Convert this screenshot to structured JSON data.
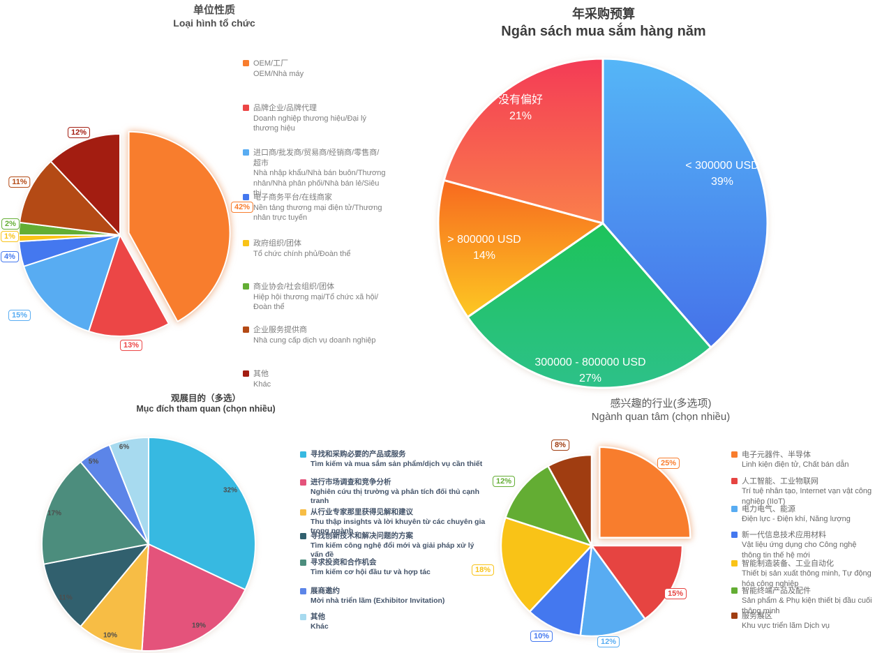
{
  "page": {
    "background": "#ffffff"
  },
  "chart_data": [
    {
      "id": "org-type",
      "type": "pie",
      "title_cn": "单位性质",
      "title_vi": "Loại hình tổ chức",
      "label_style": "boxed-percent-outside",
      "legend_position": "right",
      "slices": [
        {
          "label_cn": "OEM/工厂",
          "label_vi": "OEM/Nhà máy",
          "value": 42,
          "color": "#F87D2D",
          "exploded": true
        },
        {
          "label_cn": "品牌企业/品牌代理",
          "label_vi": "Doanh nghiệp thương hiệu/Đại lý thương hiệu",
          "value": 13,
          "color": "#EC4646"
        },
        {
          "label_cn": "进口商/批发商/贸易商/经销商/零售商/超市",
          "label_vi": "Nhà nhập khẩu/Nhà bán buôn/Thương nhân/Nhà phân phối/Nhà bán lẻ/Siêu thị",
          "value": 15,
          "color": "#58ACF2"
        },
        {
          "label_cn": "电子商务平台/在线商家",
          "label_vi": "Nền tảng thương mại điện tử/Thương nhân trực tuyến",
          "value": 4,
          "color": "#4478EF"
        },
        {
          "label_cn": "政府组织/团体",
          "label_vi": "Tổ chức chính phủ/Đoàn thể",
          "value": 1,
          "color": "#F9C317"
        },
        {
          "label_cn": "商业协会/社会组织/团体",
          "label_vi": "Hiệp hội thương mại/Tổ chức xã hội/Đoàn thể",
          "value": 2,
          "color": "#63AE34"
        },
        {
          "label_cn": "企业服务提供商",
          "label_vi": "Nhà cung cấp dịch vụ doanh nghiệp",
          "value": 11,
          "color": "#B44A15"
        },
        {
          "label_cn": "其他",
          "label_vi": "Khác",
          "value": 12,
          "color": "#A31D11"
        }
      ]
    },
    {
      "id": "budget",
      "type": "pie",
      "title_cn": "年采购预算",
      "title_vi": "Ngân sách mua sắm hàng năm",
      "label_style": "inside-white",
      "legend_position": "none",
      "slices": [
        {
          "label": "< 300000 USD",
          "value": 39,
          "gradient": [
            "#55B6F7",
            "#4571E9"
          ]
        },
        {
          "label": "300000 - 800000 USD",
          "value": 27,
          "gradient": [
            "#1DC35A",
            "#2DC189"
          ]
        },
        {
          "label": "> 800000 USD",
          "value": 14,
          "gradient": [
            "#F7691F",
            "#FDC822"
          ]
        },
        {
          "label": "没有偏好",
          "value": 21,
          "gradient": [
            "#F43B56",
            "#FA7F4B"
          ]
        }
      ]
    },
    {
      "id": "visit-purpose",
      "type": "pie",
      "title_cn": "观展目的（多选）",
      "title_vi": "Mục đích tham quan (chọn nhiều)",
      "label_style": "inside-dark-percent",
      "legend_position": "right",
      "slices": [
        {
          "label_cn": "寻找和采购必要的产品或服务",
          "label_vi": "Tìm kiếm và mua sắm sản phẩm/dịch vụ cần thiết",
          "value": 32,
          "color": "#37B9E1"
        },
        {
          "label_cn": "进行市场调查和竞争分析",
          "label_vi": "Nghiên cứu thị trường và phân tích đối thủ cạnh tranh",
          "value": 19,
          "color": "#E4537B"
        },
        {
          "label_cn": "从行业专家那里获得见解和建议",
          "label_vi": "Thu thập insights và lời khuyên từ các chuyên gia trong ngành",
          "value": 10,
          "color": "#F7BD45"
        },
        {
          "label_cn": "寻找创新技术和解决问题的方案",
          "label_vi": "Tìm kiếm công nghệ đổi mới và giải pháp xử lý vấn đề",
          "value": 11,
          "color": "#31606E"
        },
        {
          "label_cn": "寻求投资和合作机会",
          "label_vi": "Tìm kiếm cơ hội đầu tư và hợp tác",
          "value": 17,
          "color": "#4C8D7D"
        },
        {
          "label_cn": "展商邀约",
          "label_vi": "Mời nhà triển lãm (Exhibitor Invitation)",
          "value": 5,
          "color": "#5C85E8"
        },
        {
          "label_cn": "其他",
          "label_vi": "Khác",
          "value": 6,
          "color": "#A7DAEF"
        }
      ]
    },
    {
      "id": "industry",
      "type": "pie",
      "title_cn": "感兴趣的行业(多选项)",
      "title_vi": "Ngành quan tâm (chọn nhiều)",
      "label_style": "boxed-percent-outside",
      "legend_position": "right",
      "slices": [
        {
          "label_cn": "电子元器件、半导体",
          "label_vi": "Linh kiện điện tử, Chất bán dẫn",
          "value": 25,
          "color": "#F87D2D",
          "exploded": true
        },
        {
          "label_cn": "人工智能、工业物联网",
          "label_vi": "Trí tuệ nhân tạo, Internet vạn vật công nghiệp (IIoT)",
          "value": 15,
          "color": "#E64441"
        },
        {
          "label_cn": "电力电气、能源",
          "label_vi": "Điện lực - Điện khí, Năng lượng",
          "value": 12,
          "color": "#58ACF2"
        },
        {
          "label_cn": "新一代信息技术应用材料",
          "label_vi": "Vật liệu ứng dụng cho Công nghệ thông tin thế hệ mới",
          "value": 10,
          "color": "#4478EF"
        },
        {
          "label_cn": "智能制造装备、工业自动化",
          "label_vi": "Thiết bị sản xuất thông minh, Tự động hóa công nghiệp",
          "value": 18,
          "color": "#F9C317"
        },
        {
          "label_cn": "智能终端产品及配件",
          "label_vi": "Sản phẩm & Phụ kiện thiết bị đầu cuối thông minh",
          "value": 12,
          "color": "#63AD33"
        },
        {
          "label_cn": "服务展区",
          "label_vi": "Khu vực triển lãm Dịch vụ",
          "value": 8,
          "color": "#A03D11"
        }
      ]
    }
  ]
}
